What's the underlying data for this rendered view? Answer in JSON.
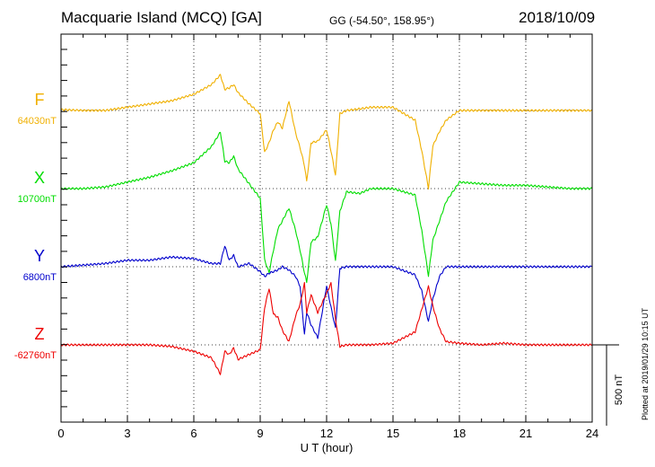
{
  "header": {
    "title": "Macquarie Island (MCQ)  [GA]",
    "coords": "GG (-54.50°, 158.95°)",
    "date": "2018/10/09"
  },
  "plotted_note": "Plotted at 2019/01/29 10:15 UT",
  "scale_bar": {
    "label": "500 nT",
    "value": 500
  },
  "colors": {
    "F": "#f0b000",
    "X": "#00dd00",
    "Y": "#0000cc",
    "Z": "#ee0000"
  },
  "chart_data": {
    "type": "line",
    "title": "Macquarie Island (MCQ)  [GA]",
    "xlabel": "U T (hour)",
    "ylabel": "",
    "xlim": [
      0,
      24
    ],
    "xticks": [
      "0",
      "3",
      "6",
      "9",
      "12",
      "15",
      "18",
      "21",
      "24"
    ],
    "grid": true,
    "scale_nT": 500,
    "series": [
      {
        "name": "F",
        "baseline_label": "64030nT",
        "baseline": 64030,
        "color": "#f0b000",
        "x": [
          0,
          1,
          2,
          3,
          4,
          5,
          6,
          6.8,
          7.2,
          7.4,
          7.6,
          7.8,
          8,
          8.5,
          9,
          9.2,
          9.4,
          9.6,
          9.8,
          10,
          10.3,
          10.6,
          10.8,
          11,
          11.1,
          11.3,
          11.6,
          12,
          12.2,
          12.4,
          12.6,
          12.9,
          13.5,
          14,
          15,
          16,
          16.3,
          16.6,
          16.8,
          17.1,
          17.4,
          18,
          19,
          20,
          21,
          22,
          23,
          24
        ],
        "y": [
          5,
          0,
          0,
          20,
          40,
          60,
          100,
          160,
          220,
          130,
          140,
          160,
          110,
          40,
          -20,
          -260,
          -200,
          -120,
          -70,
          -110,
          60,
          -140,
          -230,
          -340,
          -440,
          -200,
          -190,
          -120,
          -250,
          -400,
          -20,
          0,
          10,
          20,
          20,
          -60,
          -250,
          -480,
          -220,
          -130,
          -60,
          0,
          0,
          0,
          0,
          0,
          0,
          0
        ]
      },
      {
        "name": "X",
        "baseline_label": "10700nT",
        "baseline": 10700,
        "color": "#00dd00",
        "x": [
          0,
          1,
          2,
          3,
          4,
          5,
          6,
          6.8,
          7.2,
          7.4,
          7.6,
          7.8,
          8,
          8.5,
          9,
          9.2,
          9.4,
          9.6,
          9.8,
          10,
          10.3,
          10.6,
          10.8,
          11,
          11.1,
          11.3,
          11.6,
          12,
          12.2,
          12.4,
          12.6,
          12.9,
          13.5,
          14,
          15,
          16,
          16.3,
          16.6,
          16.8,
          17.1,
          17.4,
          18,
          19,
          20,
          21,
          22,
          23,
          24
        ],
        "y": [
          0,
          0,
          10,
          40,
          70,
          110,
          160,
          260,
          350,
          170,
          160,
          200,
          120,
          30,
          -60,
          -440,
          -520,
          -380,
          -250,
          -200,
          -120,
          -260,
          -380,
          -520,
          -580,
          -330,
          -300,
          -100,
          -220,
          -450,
          -140,
          -20,
          -30,
          0,
          0,
          -40,
          -260,
          -540,
          -320,
          -200,
          -80,
          40,
          30,
          20,
          20,
          10,
          0,
          0
        ]
      },
      {
        "name": "Y",
        "baseline_label": "6800nT",
        "baseline": 6800,
        "color": "#0000cc",
        "x": [
          0,
          1,
          2,
          3,
          4,
          5,
          6,
          6.8,
          7.2,
          7.4,
          7.6,
          7.8,
          8,
          8.5,
          9,
          9.2,
          9.4,
          9.6,
          9.8,
          10,
          10.3,
          10.6,
          10.8,
          11,
          11.1,
          11.3,
          11.6,
          12,
          12.2,
          12.4,
          12.6,
          12.9,
          13.5,
          14,
          15,
          16,
          16.3,
          16.6,
          16.8,
          17.1,
          17.4,
          18,
          19,
          20,
          21,
          22,
          23,
          24
        ],
        "y": [
          0,
          10,
          20,
          40,
          40,
          60,
          50,
          20,
          20,
          130,
          40,
          70,
          0,
          20,
          -30,
          -60,
          -40,
          -30,
          -20,
          0,
          -20,
          -60,
          -120,
          -420,
          -280,
          -360,
          -440,
          -120,
          -250,
          -380,
          -10,
          0,
          0,
          0,
          0,
          -50,
          -150,
          -340,
          -200,
          -60,
          0,
          0,
          0,
          0,
          0,
          0,
          0,
          0
        ]
      },
      {
        "name": "Z",
        "baseline_label": "-62760nT",
        "baseline": -62760,
        "color": "#ee0000",
        "x": [
          0,
          1,
          2,
          3,
          4,
          5,
          6,
          6.8,
          7.2,
          7.4,
          7.6,
          7.8,
          8,
          8.5,
          9,
          9.2,
          9.4,
          9.6,
          9.8,
          10,
          10.3,
          10.6,
          10.8,
          11,
          11.1,
          11.3,
          11.6,
          12,
          12.2,
          12.4,
          12.6,
          12.9,
          13.5,
          14,
          15,
          16,
          16.3,
          16.6,
          16.8,
          17.1,
          17.4,
          18,
          19,
          20,
          21,
          22,
          23,
          24
        ],
        "y": [
          0,
          0,
          0,
          0,
          0,
          -10,
          -40,
          -80,
          -180,
          -40,
          -60,
          -20,
          -90,
          -60,
          -30,
          230,
          350,
          190,
          170,
          90,
          20,
          180,
          250,
          380,
          200,
          310,
          200,
          320,
          380,
          160,
          -10,
          0,
          0,
          0,
          10,
          80,
          220,
          360,
          240,
          100,
          20,
          10,
          0,
          10,
          0,
          0,
          0,
          0
        ]
      }
    ]
  }
}
